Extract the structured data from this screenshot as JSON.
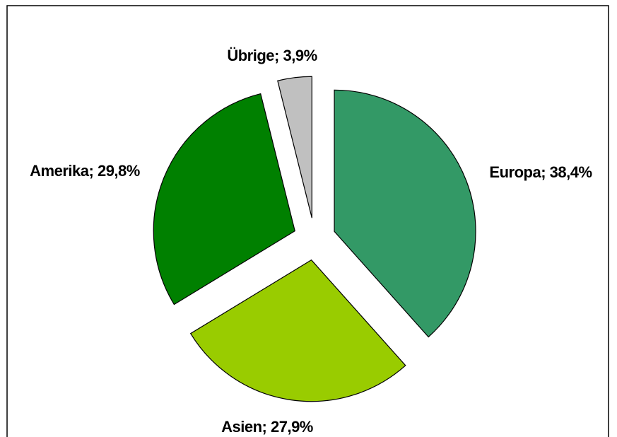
{
  "chart_data": {
    "type": "pie",
    "categories": [
      "Europa",
      "Asien",
      "Amerika",
      "Übrige"
    ],
    "values": [
      38.4,
      27.9,
      29.8,
      3.9
    ],
    "value_labels": [
      "38,4%",
      "27,9%",
      "29,8%",
      "3,9%"
    ],
    "label_separator": "; ",
    "colors": [
      "#339966",
      "#99cc00",
      "#008000",
      "#c0c0c0"
    ],
    "exploded": true
  }
}
